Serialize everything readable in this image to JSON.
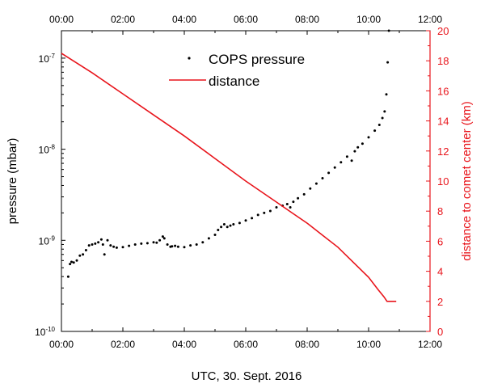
{
  "chart_data": {
    "type": "line",
    "xlabel": "UTC, 30. Sept. 2016",
    "ylabel_left": "pressure (mbar)",
    "ylabel_right": "distance to comet center (km)",
    "x_ticks": [
      "00:00",
      "02:00",
      "04:00",
      "06:00",
      "08:00",
      "10:00",
      "12:00"
    ],
    "xlim_hours": [
      0,
      12
    ],
    "y_left": {
      "scale": "log",
      "ylim": [
        1e-10,
        2e-07
      ],
      "ticks": [
        {
          "base": "10",
          "exp": "-10",
          "value": 1e-10
        },
        {
          "base": "10",
          "exp": "-9",
          "value": 1e-09
        },
        {
          "base": "10",
          "exp": "-8",
          "value": 1e-08
        },
        {
          "base": "10",
          "exp": "-7",
          "value": 1e-07
        }
      ]
    },
    "y_right": {
      "scale": "linear",
      "ylim": [
        0,
        20
      ],
      "ticks": [
        "0",
        "2",
        "4",
        "6",
        "8",
        "10",
        "12",
        "14",
        "16",
        "18",
        "20"
      ],
      "color": "#e8141b"
    },
    "legend": {
      "position": "top-center",
      "entries": [
        {
          "label": "COPS pressure",
          "marker": "dot",
          "color": "#000000"
        },
        {
          "label": "distance",
          "marker": "line",
          "color": "#e8141b"
        }
      ]
    },
    "series": [
      {
        "name": "COPS pressure",
        "axis": "left",
        "style": "dots",
        "color": "#000000",
        "x_hours": [
          0.22,
          0.28,
          0.33,
          0.4,
          0.5,
          0.6,
          0.7,
          0.8,
          0.9,
          1.0,
          1.1,
          1.2,
          1.3,
          1.35,
          1.4,
          1.5,
          1.6,
          1.7,
          1.8,
          2.0,
          2.2,
          2.4,
          2.6,
          2.8,
          3.0,
          3.1,
          3.2,
          3.3,
          3.35,
          3.45,
          3.55,
          3.6,
          3.7,
          3.8,
          4.0,
          4.2,
          4.4,
          4.6,
          4.8,
          5.0,
          5.1,
          5.2,
          5.3,
          5.4,
          5.5,
          5.6,
          5.8,
          6.0,
          6.2,
          6.4,
          6.6,
          6.8,
          7.0,
          7.2,
          7.35,
          7.45,
          7.55,
          7.7,
          7.9,
          8.1,
          8.3,
          8.5,
          8.7,
          8.9,
          9.1,
          9.3,
          9.45,
          9.55,
          9.65,
          9.8,
          10.0,
          10.2,
          10.35,
          10.45,
          10.52,
          10.58,
          10.62,
          10.66
        ],
        "y": [
          4e-10,
          5.5e-10,
          5.8e-10,
          5.7e-10,
          6e-10,
          6.8e-10,
          7e-10,
          7.8e-10,
          8.8e-10,
          9e-10,
          9.2e-10,
          9.5e-10,
          1.02e-09,
          9e-10,
          7e-10,
          1e-09,
          8.8e-10,
          8.5e-10,
          8.3e-10,
          8.4e-10,
          8.7e-10,
          9e-10,
          9.2e-10,
          9.3e-10,
          9.5e-10,
          9.4e-10,
          1e-09,
          1.1e-09,
          1.05e-09,
          9e-10,
          8.5e-10,
          8.6e-10,
          8.7e-10,
          8.5e-10,
          8.4e-10,
          8.8e-10,
          9e-10,
          9.5e-10,
          1.05e-09,
          1.15e-09,
          1.3e-09,
          1.4e-09,
          1.5e-09,
          1.4e-09,
          1.45e-09,
          1.5e-09,
          1.55e-09,
          1.65e-09,
          1.75e-09,
          1.9e-09,
          2e-09,
          2.1e-09,
          2.3e-09,
          2.4e-09,
          2.5e-09,
          2.3e-09,
          2.65e-09,
          2.9e-09,
          3.2e-09,
          3.7e-09,
          4.2e-09,
          4.8e-09,
          5.5e-09,
          6.3e-09,
          7.2e-09,
          8.3e-09,
          7.5e-09,
          9.5e-09,
          1.05e-08,
          1.15e-08,
          1.35e-08,
          1.6e-08,
          1.85e-08,
          2.2e-08,
          2.6e-08,
          4e-08,
          9e-08,
          2e-07
        ]
      },
      {
        "name": "distance",
        "axis": "right",
        "style": "line",
        "color": "#e8141b",
        "x_hours": [
          0,
          1,
          2,
          3,
          4,
          5,
          6,
          7,
          7.5,
          8,
          8.5,
          9,
          9.5,
          10,
          10.3,
          10.5,
          10.6,
          10.9
        ],
        "y": [
          18.5,
          17.2,
          15.8,
          14.4,
          13.0,
          11.5,
          10.0,
          8.6,
          7.9,
          7.2,
          6.4,
          5.6,
          4.6,
          3.6,
          2.8,
          2.3,
          2.0,
          2.0
        ]
      }
    ]
  }
}
